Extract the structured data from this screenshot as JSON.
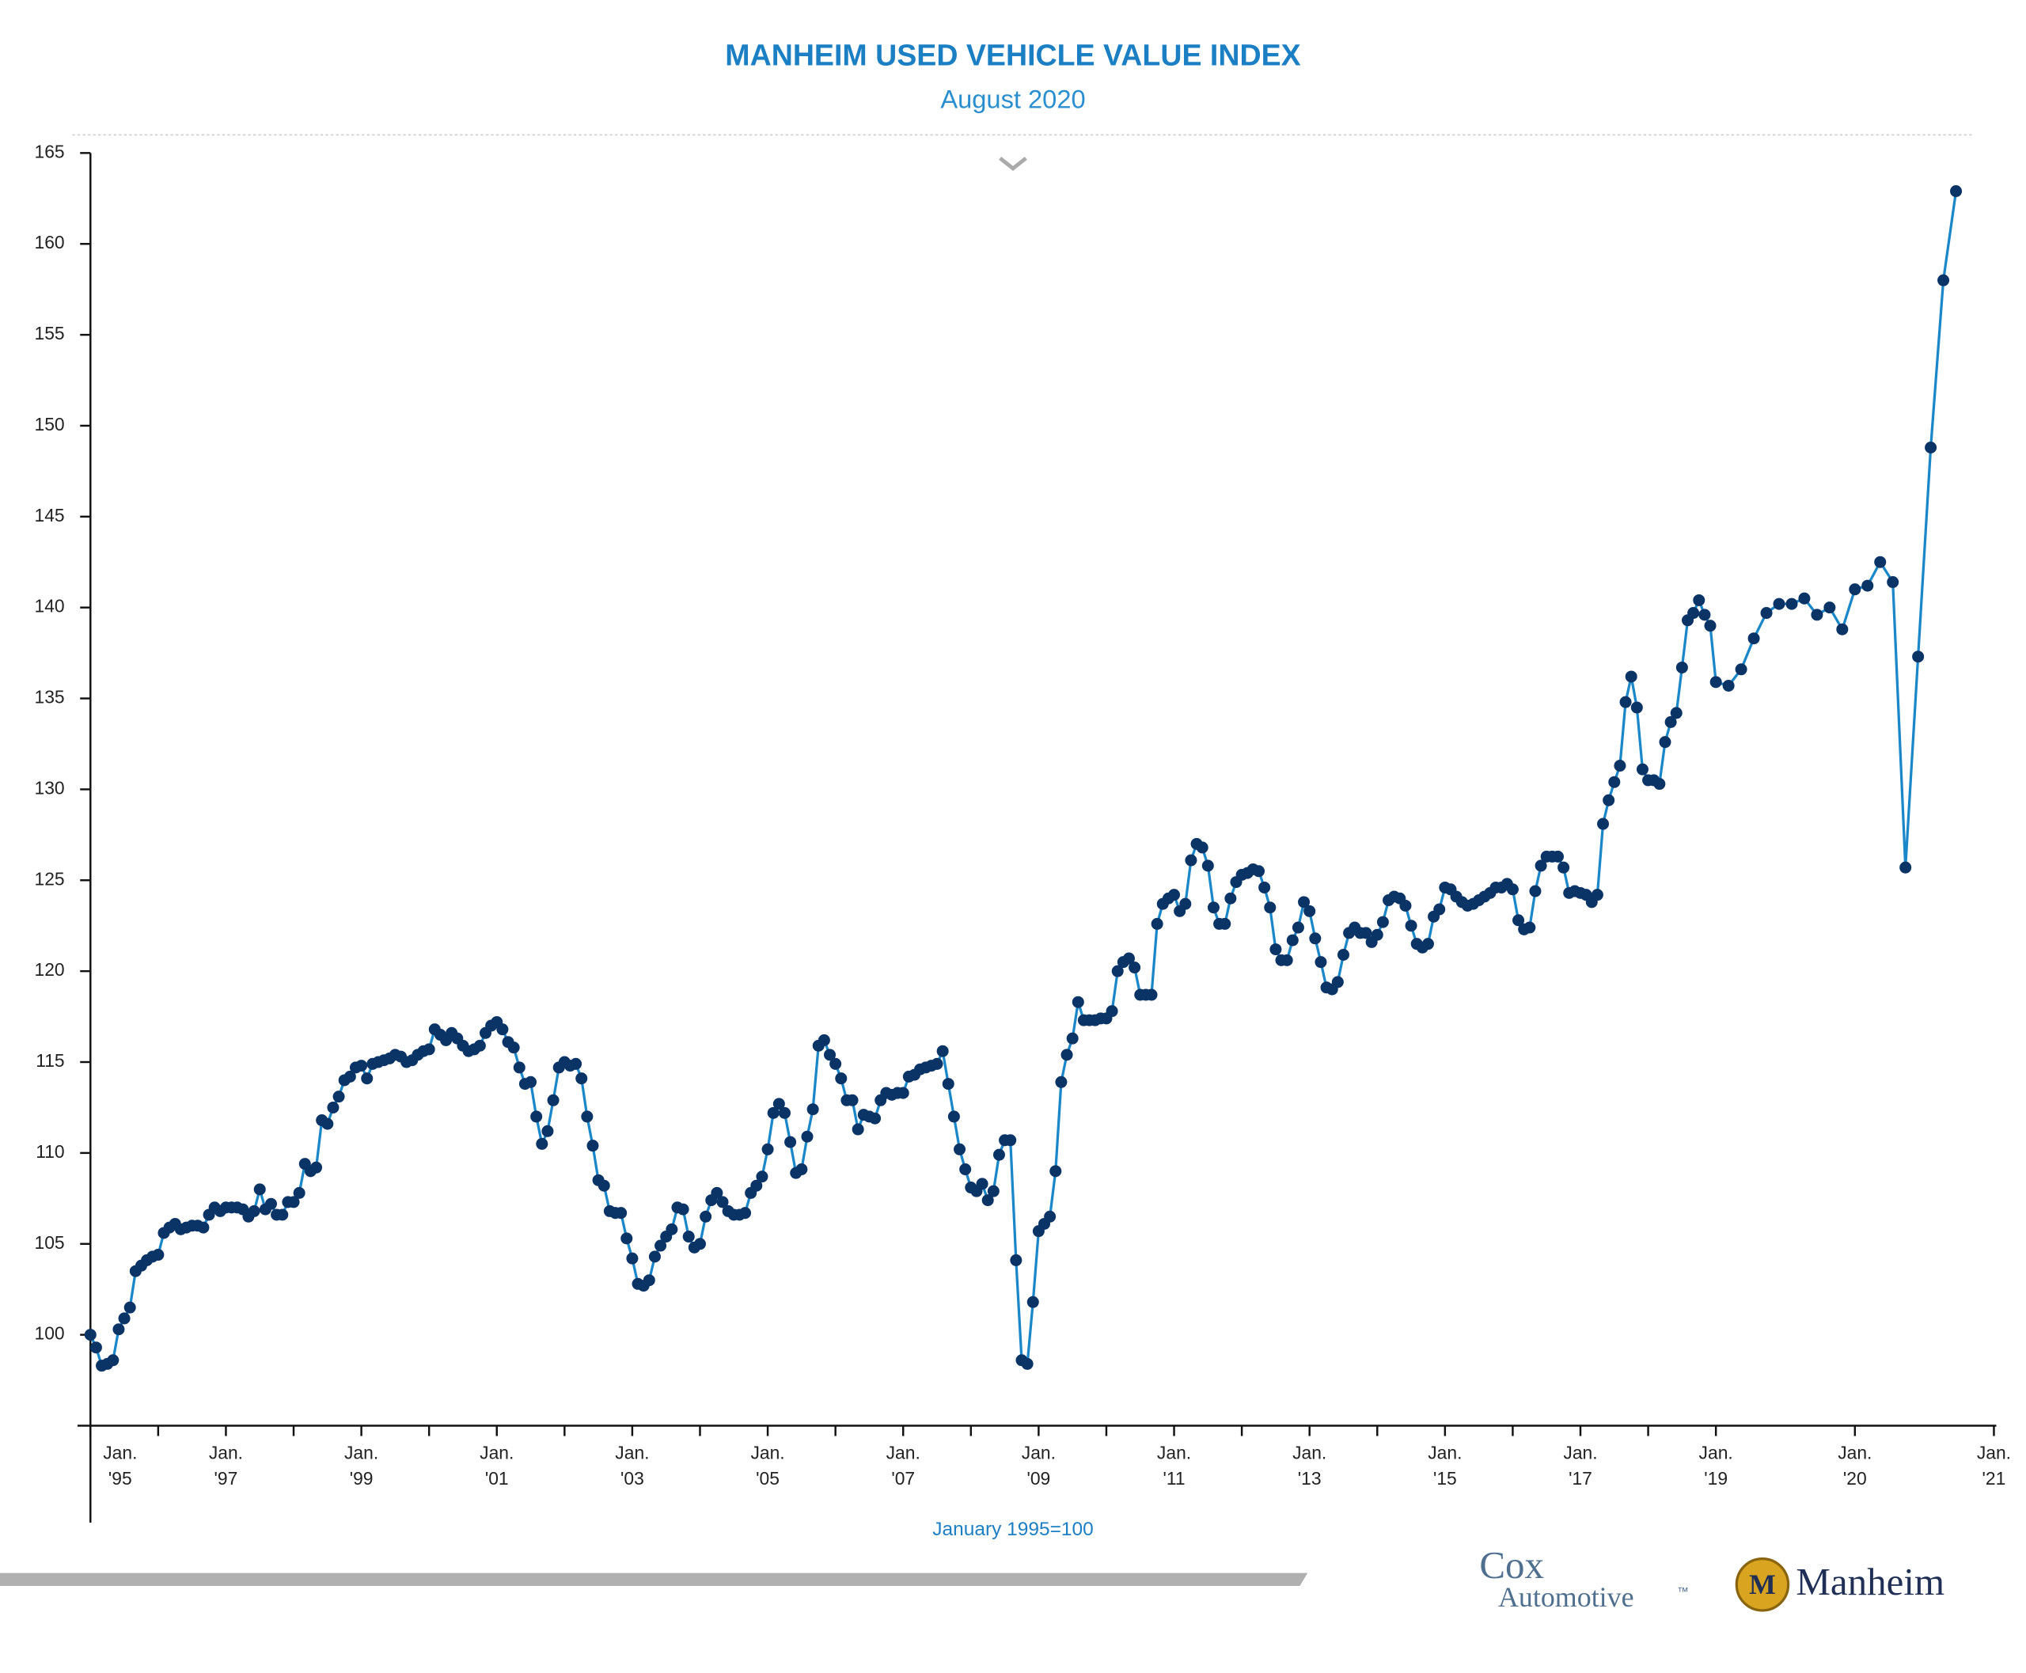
{
  "chart_data": {
    "type": "line",
    "title": "MANHEIM USED VEHICLE VALUE INDEX",
    "subtitle": "August 2020",
    "note": "January 1995=100",
    "brands": [
      "Cox",
      "Automotive",
      "™",
      "Manheim"
    ],
    "color": "#1a87c9",
    "marker_color": "#0b3466",
    "ylim": [
      95,
      165
    ],
    "yticks": [
      100,
      105,
      110,
      115,
      120,
      125,
      130,
      135,
      140,
      145,
      150,
      155,
      160,
      165
    ],
    "xticks": [
      {
        "value": 0,
        "label": [
          "Jan.",
          "'95"
        ]
      },
      12,
      {
        "value": 24,
        "label": [
          "Jan.",
          "'97"
        ]
      },
      36,
      {
        "value": 48,
        "label": [
          "Jan.",
          "'99"
        ]
      },
      60,
      {
        "value": 72,
        "label": [
          "Jan.",
          "'01"
        ]
      },
      84,
      {
        "value": 96,
        "label": [
          "Jan.",
          "'03"
        ]
      },
      108,
      {
        "value": 120,
        "label": [
          "Jan.",
          "'05"
        ]
      },
      132,
      {
        "value": 144,
        "label": [
          "Jan.",
          "'07"
        ]
      },
      156,
      {
        "value": 168,
        "label": [
          "Jan.",
          "'09"
        ]
      },
      180,
      {
        "value": 192,
        "label": [
          "Jan.",
          "'11"
        ]
      },
      204,
      {
        "value": 216,
        "label": [
          "Jan.",
          "'13"
        ]
      },
      228,
      {
        "value": 240,
        "label": [
          "Jan.",
          "'15"
        ]
      },
      252,
      {
        "value": 264,
        "label": [
          "Jan.",
          "'17"
        ]
      },
      276,
      {
        "value": 288,
        "label": [
          "Jan.",
          "'19"
        ]
      },
      {
        "value": 299,
        "label": [
          "Jan.",
          "'20"
        ]
      },
      {
        "value": 310,
        "label": [
          "Jan.",
          "'21"
        ]
      }
    ],
    "values": [
      100,
      99.3,
      98.3,
      98.4,
      98.6,
      100.3,
      100.9,
      101.5,
      103.5,
      103.8,
      104.1,
      104.3,
      104.4,
      105.6,
      105.9,
      106.1,
      105.8,
      105.9,
      106.0,
      106.0,
      105.9,
      106.6,
      107.0,
      106.8,
      107.0,
      107.0,
      107.0,
      106.9,
      106.5,
      106.8,
      108.0,
      106.9,
      107.2,
      106.6,
      106.6,
      107.3,
      107.3,
      107.8,
      109.4,
      109.0,
      109.2,
      111.8,
      111.6,
      112.5,
      113.1,
      114.0,
      114.2,
      114.7,
      114.8,
      114.1,
      114.9,
      115.0,
      115.1,
      115.2,
      115.4,
      115.3,
      115.0,
      115.1,
      115.4,
      115.6,
      115.7,
      116.8,
      116.5,
      116.2,
      116.6,
      116.3,
      115.9,
      115.6,
      115.7,
      115.9,
      116.6,
      117.0,
      117.2,
      116.8,
      116.1,
      115.8,
      114.7,
      113.8,
      113.9,
      112.0,
      110.5,
      111.2,
      112.9,
      114.7,
      115.0,
      114.8,
      114.9,
      114.1,
      112.0,
      110.4,
      108.5,
      108.2,
      106.8,
      106.7,
      106.7,
      105.3,
      104.2,
      102.8,
      102.7,
      103.0,
      104.3,
      104.9,
      105.4,
      105.8,
      107.0,
      106.9,
      105.4,
      104.8,
      105.0,
      106.5,
      107.4,
      107.8,
      107.3,
      106.8,
      106.6,
      106.6,
      106.7,
      107.8,
      108.2,
      108.7,
      110.2,
      112.2,
      112.7,
      112.2,
      110.6,
      108.9,
      109.1,
      110.9,
      112.4,
      115.9,
      116.2,
      115.4,
      114.9,
      114.1,
      112.9,
      112.9,
      111.3,
      112.1,
      112.0,
      111.9,
      112.9,
      113.3,
      113.2,
      113.3,
      113.3,
      114.2,
      114.3,
      114.6,
      114.7,
      114.8,
      114.9,
      115.6,
      113.8,
      112.0,
      110.2,
      109.1,
      108.1,
      107.9,
      108.3,
      107.4,
      107.9,
      109.9,
      110.7,
      110.7,
      104.1,
      98.6,
      98.4,
      101.8,
      105.7,
      106.1,
      106.5,
      109.0,
      113.9,
      115.4,
      116.3,
      118.3,
      117.3,
      117.3,
      117.3,
      117.4,
      117.4,
      117.8,
      120.0,
      120.5,
      120.7,
      120.2,
      118.7,
      118.7,
      118.7,
      122.6,
      123.7,
      124.0,
      124.2,
      123.3,
      123.7,
      126.1,
      127.0,
      126.8,
      125.8,
      123.5,
      122.6,
      122.6,
      124.0,
      124.9,
      125.3,
      125.4,
      125.6,
      125.5,
      124.6,
      123.5,
      121.2,
      120.6,
      120.6,
      121.7,
      122.4,
      123.8,
      123.3,
      121.8,
      120.5,
      119.1,
      119.0,
      119.4,
      120.9,
      122.1,
      122.4,
      122.1,
      122.1,
      121.6,
      122.0,
      122.7,
      123.9,
      124.1,
      124.0,
      123.6,
      122.5,
      121.5,
      121.3,
      121.5,
      123.0,
      123.4,
      124.6,
      124.5,
      124.1,
      123.8,
      123.6,
      123.7,
      123.9,
      124.1,
      124.3,
      124.6,
      124.6,
      124.8,
      124.5,
      122.8,
      122.3,
      122.4,
      124.4,
      125.8,
      126.3,
      126.3,
      126.3,
      125.7,
      124.3,
      124.4,
      124.3,
      124.2,
      123.8,
      124.2,
      128.1,
      129.4,
      130.4,
      131.3,
      134.8,
      136.2,
      134.5,
      131.1,
      130.5,
      130.5,
      130.3,
      132.6,
      133.7,
      134.2,
      136.7,
      139.3,
      139.7,
      140.4,
      139.6,
      139.0,
      135.9,
      135.7,
      136.6,
      138.3,
      139.7,
      140.2,
      140.2,
      140.5,
      139.6,
      140.0,
      138.8,
      141.0,
      141.2,
      142.5,
      141.4,
      125.7,
      137.3,
      148.8,
      158.0,
      162.9
    ]
  }
}
